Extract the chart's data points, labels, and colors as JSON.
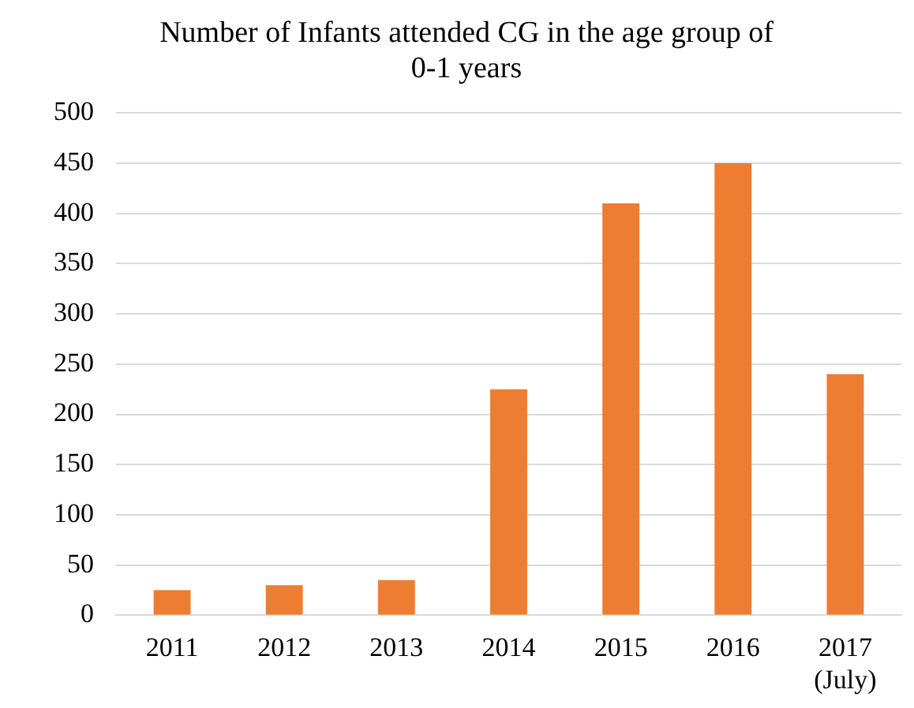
{
  "chart_data": {
    "type": "bar",
    "title": "Number of Infants attended CG in the age group of 0-1 years",
    "categories": [
      "2011",
      "2012",
      "2013",
      "2014",
      "2015",
      "2016",
      "2017 (July)"
    ],
    "values": [
      25,
      30,
      35,
      225,
      410,
      450,
      240
    ],
    "color": "#ed7d31",
    "ylim": [
      0,
      500
    ],
    "yticks": [
      0,
      50,
      100,
      150,
      200,
      250,
      300,
      350,
      400,
      450,
      500
    ],
    "grid": "y",
    "legend": false
  }
}
